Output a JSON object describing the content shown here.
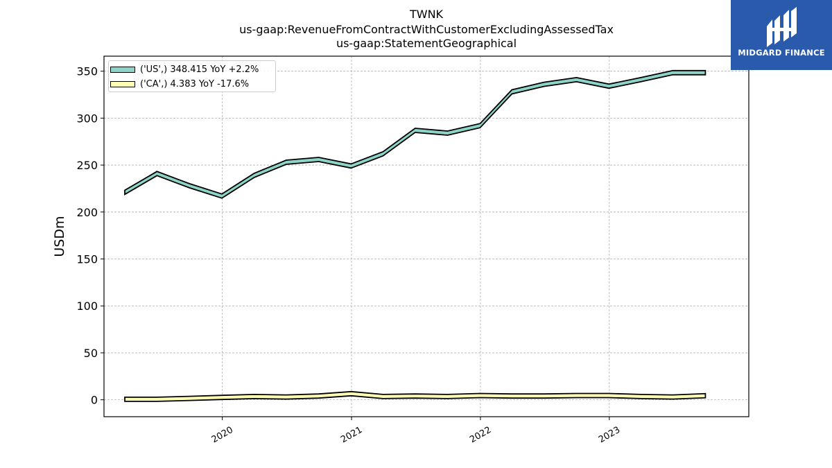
{
  "title": {
    "line1": "TWNK",
    "line2": "us-gaap:RevenueFromContractWithCustomerExcludingAssessedTax",
    "line3": "us-gaap:StatementGeographical"
  },
  "logo": {
    "text": "MIDGARD FINANCE",
    "color": "#2a5aab"
  },
  "chart_data": {
    "type": "area",
    "ylabel": "USDm",
    "xlabel": "",
    "ylim": [
      -18,
      366
    ],
    "yticks": [
      0,
      50,
      100,
      150,
      200,
      250,
      300,
      350
    ],
    "xticks": [
      {
        "label": "2020",
        "value": "2020-01-01"
      },
      {
        "label": "2021",
        "value": "2021-01-01"
      },
      {
        "label": "2022",
        "value": "2022-01-01"
      },
      {
        "label": "2023",
        "value": "2023-01-01"
      }
    ],
    "grid": true,
    "legend_position": "top-left",
    "x": [
      "2019-03-31",
      "2019-06-30",
      "2019-09-30",
      "2019-12-31",
      "2020-03-31",
      "2020-06-30",
      "2020-09-30",
      "2020-12-31",
      "2021-03-31",
      "2021-06-30",
      "2021-09-30",
      "2021-12-31",
      "2022-03-31",
      "2022-06-30",
      "2022-09-30",
      "2022-12-31",
      "2023-03-31",
      "2023-06-30",
      "2023-09-30"
    ],
    "series": [
      {
        "name": "('US',) 348.415 YoY +2.2%",
        "color": "#8dd3c7",
        "values": [
          221,
          241,
          228,
          217,
          239,
          253,
          256,
          249,
          262,
          287,
          284,
          292,
          328,
          336,
          341,
          334,
          341,
          348.4,
          348.4
        ]
      },
      {
        "name": "('CA',) 4.383 YoY -17.6%",
        "color": "#ffffb3",
        "values": [
          0.5,
          0.5,
          1.5,
          2.5,
          3.5,
          3,
          4,
          6.5,
          3.5,
          4,
          3.5,
          4.5,
          4,
          4,
          4.5,
          4.5,
          3.5,
          3,
          4.4
        ]
      }
    ]
  }
}
